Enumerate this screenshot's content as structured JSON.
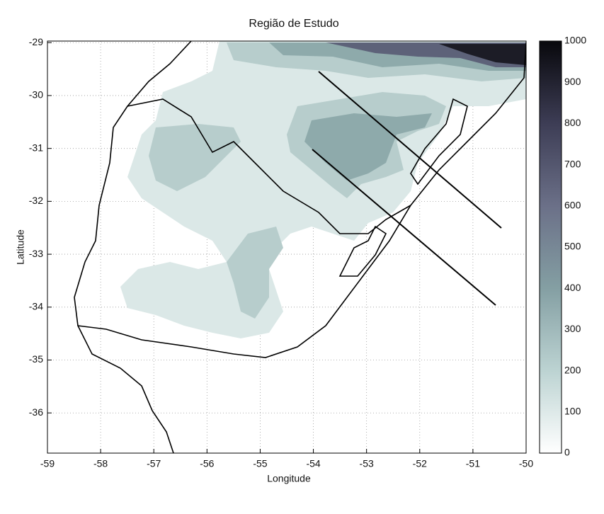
{
  "chart_data": {
    "type": "map",
    "title": "Região de Estudo",
    "xlabel": "Longitude",
    "ylabel": "Latitude",
    "xlim": [
      -59,
      -50
    ],
    "ylim": [
      -36.76,
      -28.97
    ],
    "xticks": [
      -59,
      -58,
      -57,
      -56,
      -55,
      -54,
      -53,
      -52,
      -51,
      -50
    ],
    "yticks": [
      -36,
      -35,
      -34,
      -33,
      -32,
      -31,
      -30,
      -29
    ],
    "grid": true,
    "colorbar": {
      "lim": [
        0,
        1000
      ],
      "ticks": [
        0,
        100,
        200,
        300,
        400,
        500,
        600,
        700,
        800,
        900,
        1000
      ]
    }
  }
}
